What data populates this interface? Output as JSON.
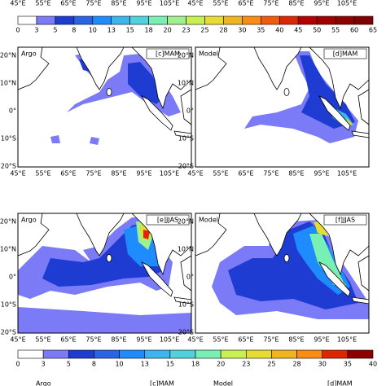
{
  "lon_labels": [
    "45°E",
    "55°E",
    "65°E",
    "75°E",
    "85°E",
    "95°E",
    "105°E"
  ],
  "lat_labels": [
    "20°N",
    "10°N",
    "0°",
    "10°S",
    "20°S"
  ],
  "colorbars": [
    {
      "ticks": [
        "0",
        "3",
        "5",
        "8",
        "10",
        "13",
        "15",
        "18",
        "20",
        "23",
        "25",
        "28",
        "30",
        "35",
        "40",
        "45",
        "50",
        "55",
        "60",
        "65"
      ]
    },
    {
      "ticks": [
        "0",
        "3",
        "5",
        "8",
        "10",
        "13",
        "15",
        "18",
        "20",
        "23",
        "25",
        "28",
        "30",
        "35",
        "40"
      ]
    }
  ],
  "panels": [
    {
      "source": "Argo",
      "label": "[c]MAM"
    },
    {
      "source": "Model",
      "label": "[d]MAM"
    },
    {
      "source": "Argo",
      "label": "[e]JJAS"
    },
    {
      "source": "Model",
      "label": "[f]JJAS"
    }
  ],
  "cut_off_panels": [
    {
      "source": "Argo",
      "label": "[c]MAM"
    },
    {
      "source": "Model",
      "label": "[d]MAM"
    }
  ]
}
